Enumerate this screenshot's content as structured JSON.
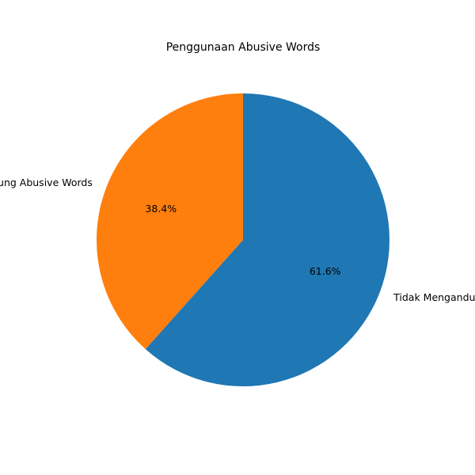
{
  "chart_data": {
    "type": "pie",
    "title": "Penggunaan Abusive Words",
    "start_angle_deg": 90,
    "direction": "clockwise",
    "slices": [
      {
        "label": "Tidak Mengandung Abusive Words",
        "value": 61.6,
        "pct_label": "61.6%",
        "color": "#1f77b4"
      },
      {
        "label": "Mengandung Abusive Words",
        "value": 38.4,
        "pct_label": "38.4%",
        "color": "#ff7f0e"
      }
    ]
  }
}
